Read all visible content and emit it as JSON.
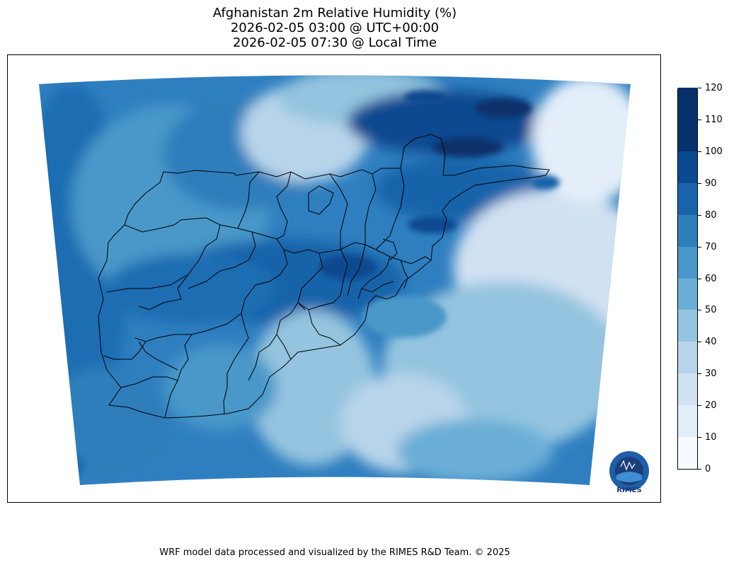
{
  "title": {
    "line1": "Afghanistan 2m Relative Humidity (%)",
    "line2": "2026-02-05 03:00 @ UTC+00:00",
    "line3": "2026-02-05 07:30 @ Local Time"
  },
  "colorbar": {
    "ticks": [
      "0",
      "10",
      "20",
      "30",
      "40",
      "50",
      "60",
      "70",
      "80",
      "90",
      "100",
      "110",
      "120"
    ],
    "colors": [
      "#f7fbff",
      "#e3eef9",
      "#d0e1f2",
      "#b7d4ea",
      "#94c4df",
      "#6aaed6",
      "#4a98c9",
      "#2e7ebc",
      "#1864aa",
      "#0a4a90",
      "#08306b",
      "#08306b"
    ]
  },
  "logo": {
    "text": "RIMES",
    "icon": "rimes-logo-icon"
  },
  "footer": "WRF model data processed and visualized by the RIMES R&D Team. © 2025"
}
